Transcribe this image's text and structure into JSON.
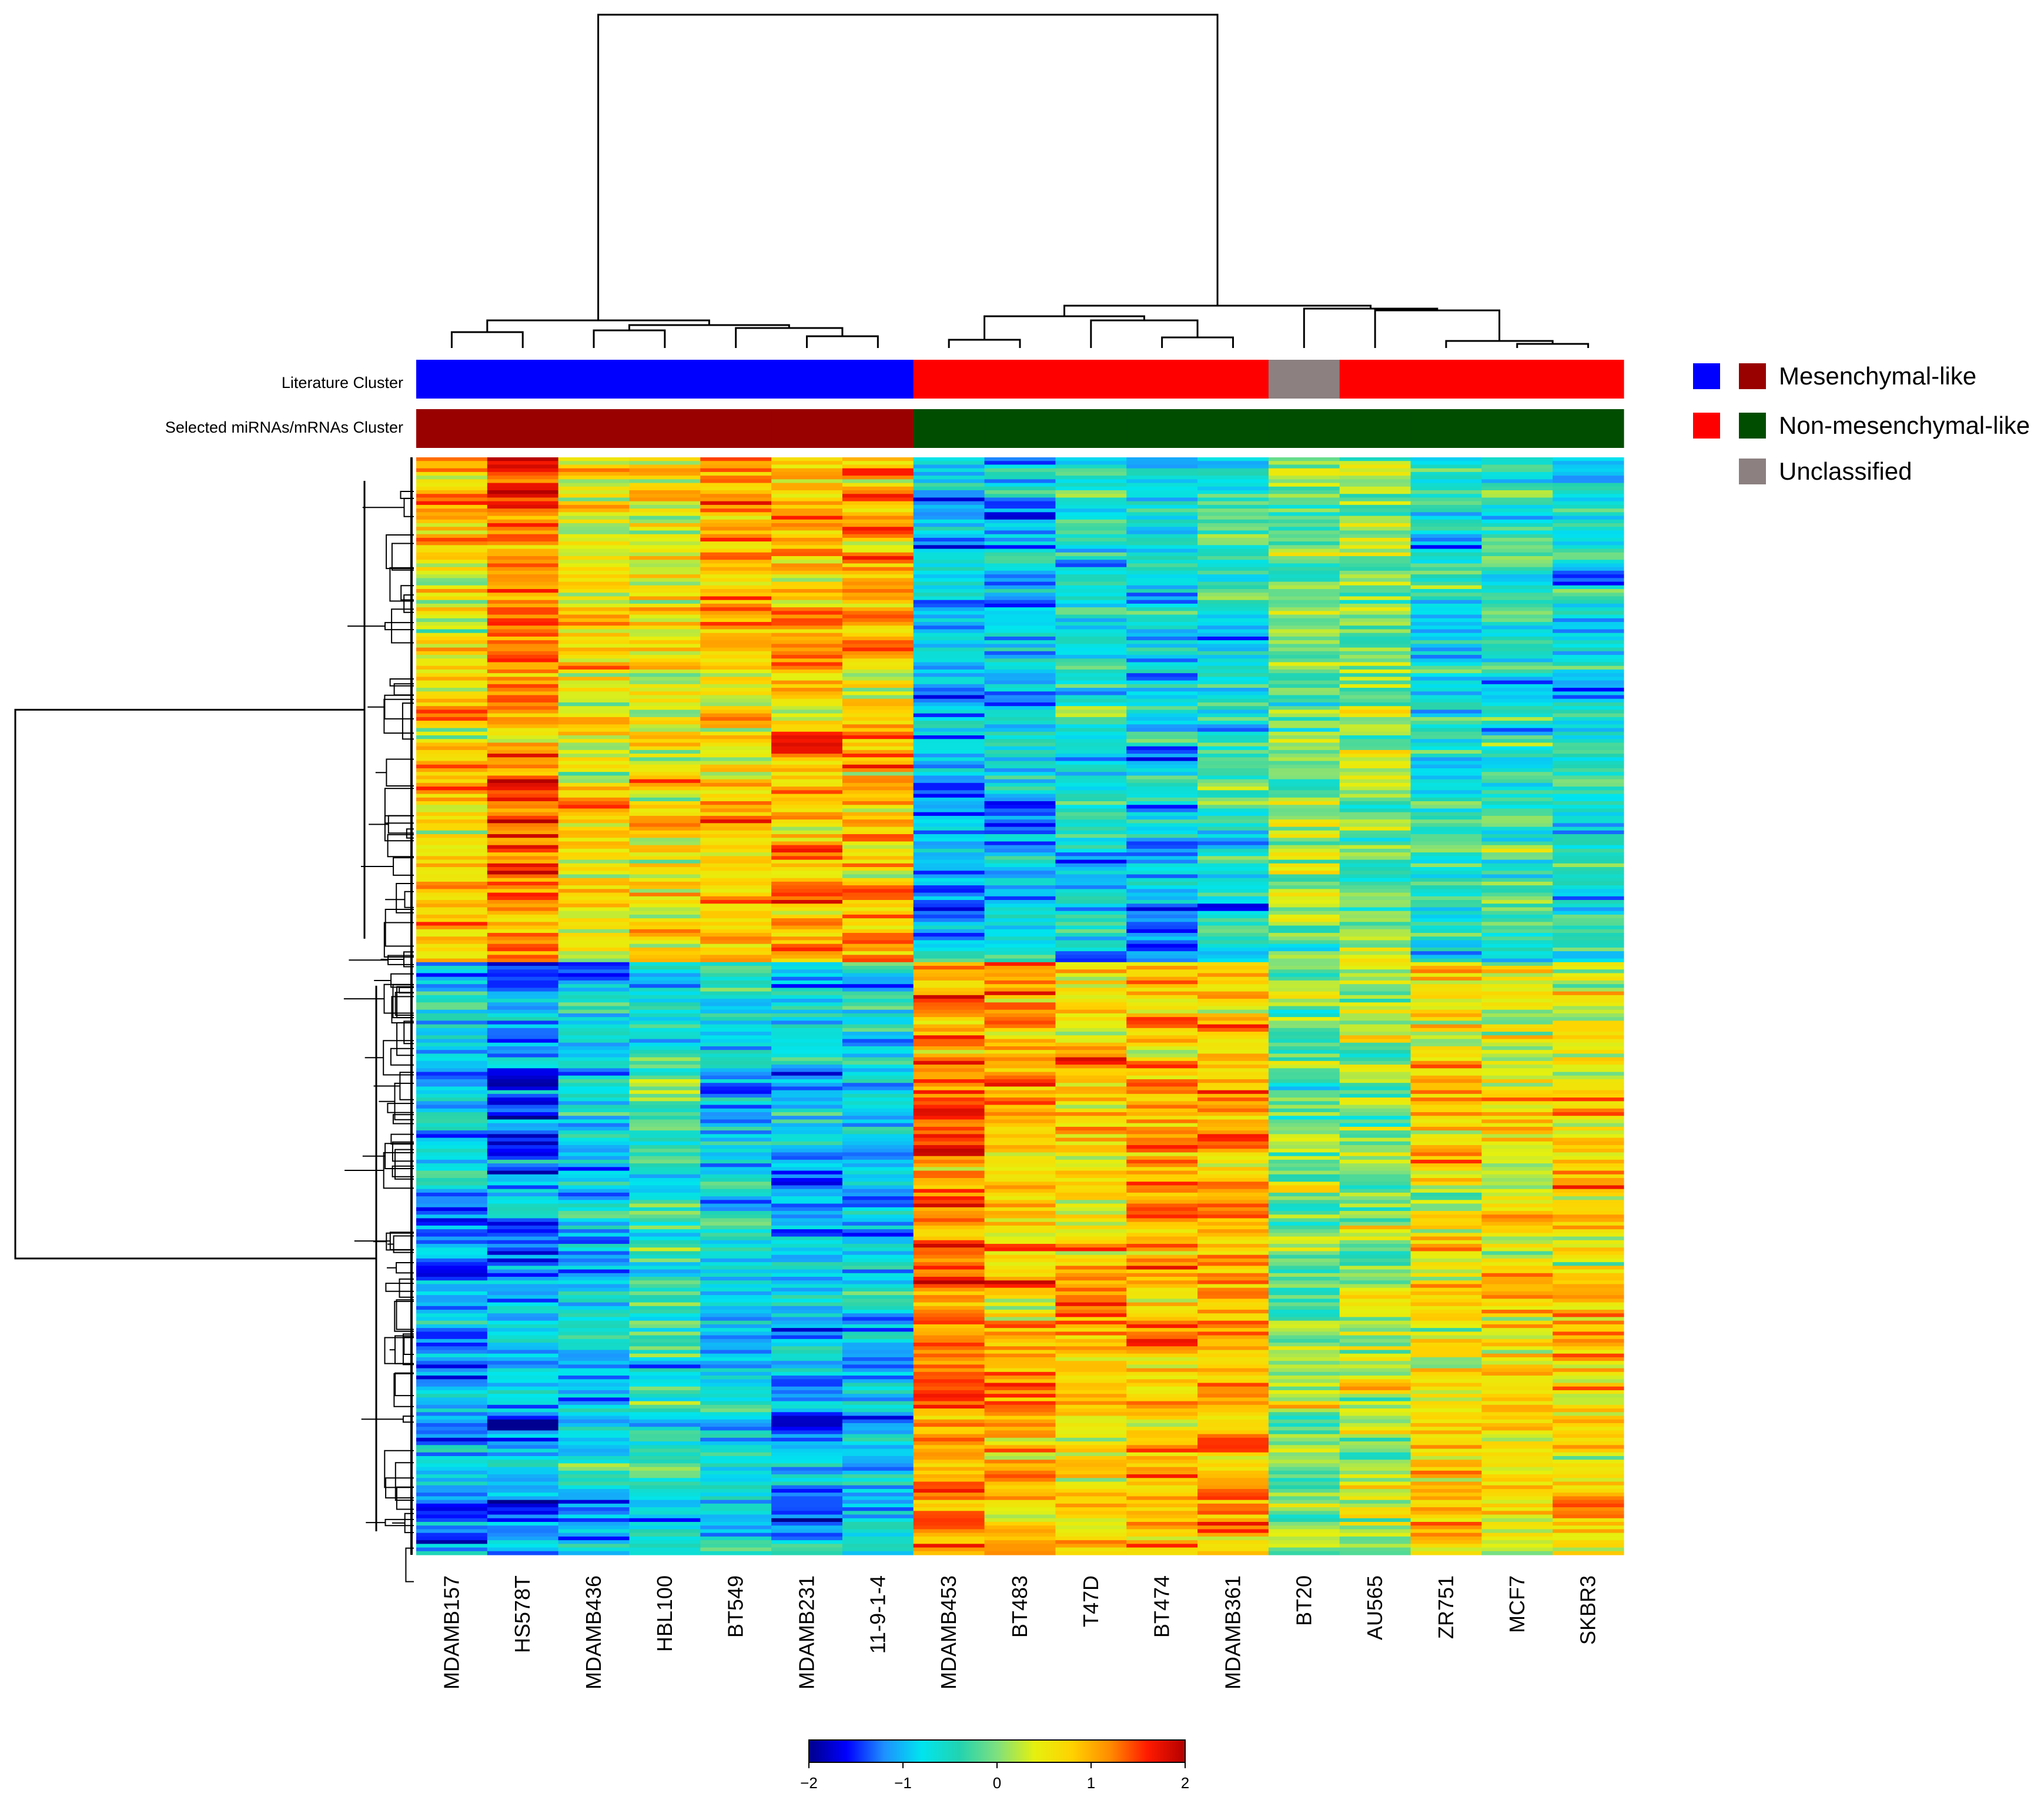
{
  "chart_data": {
    "type": "heatmap",
    "title": "",
    "samples": [
      "MDAMB157",
      "HS578T",
      "MDAMB436",
      "HBL100",
      "BT549",
      "MDAMB231",
      "11-9-1-4",
      "MDAMB453",
      "BT483",
      "T47D",
      "BT474",
      "MDAMB361",
      "BT20",
      "AU565",
      "ZR751",
      "MCF7",
      "SKBR3"
    ],
    "annotation_rows": [
      {
        "label": "Literature Cluster",
        "values": [
          "Mesenchymal-like",
          "Mesenchymal-like",
          "Mesenchymal-like",
          "Mesenchymal-like",
          "Mesenchymal-like",
          "Mesenchymal-like",
          "Mesenchymal-like",
          "Non-mesenchymal-like",
          "Non-mesenchymal-like",
          "Non-mesenchymal-like",
          "Non-mesenchymal-like",
          "Non-mesenchymal-like",
          "Unclassified",
          "Non-mesenchymal-like",
          "Non-mesenchymal-like",
          "Non-mesenchymal-like",
          "Non-mesenchymal-like"
        ]
      },
      {
        "label": "Selected miRNAs/mRNAs Cluster",
        "values": [
          "Mesenchymal-like",
          "Mesenchymal-like",
          "Mesenchymal-like",
          "Mesenchymal-like",
          "Mesenchymal-like",
          "Mesenchymal-like",
          "Mesenchymal-like",
          "Non-mesenchymal-like",
          "Non-mesenchymal-like",
          "Non-mesenchymal-like",
          "Non-mesenchymal-like",
          "Non-mesenchymal-like",
          "Non-mesenchymal-like",
          "Non-mesenchymal-like",
          "Non-mesenchymal-like",
          "Non-mesenchymal-like",
          "Non-mesenchymal-like"
        ]
      }
    ],
    "legend": [
      {
        "label": "Mesenchymal-like",
        "colors": [
          "#0000ff",
          "#990000"
        ]
      },
      {
        "label": "Non-mesenchymal-like",
        "colors": [
          "#ff0000",
          "#004d00"
        ]
      },
      {
        "label": "Unclassified",
        "colors": [
          "#8c8080"
        ]
      }
    ],
    "row_groups": {
      "upper_fraction": 0.46,
      "mean_z": [
        [
          0.7,
          -1.0
        ],
        [
          1.2,
          -1.2
        ],
        [
          0.6,
          -0.8
        ],
        [
          0.5,
          -0.6
        ],
        [
          0.8,
          -0.7
        ],
        [
          0.9,
          -0.9
        ],
        [
          0.9,
          -0.8
        ],
        [
          -1.0,
          1.2
        ],
        [
          -0.9,
          1.0
        ],
        [
          -0.7,
          0.8
        ],
        [
          -0.8,
          1.0
        ],
        [
          -0.6,
          0.9
        ],
        [
          -0.1,
          0.0
        ],
        [
          0.0,
          0.2
        ],
        [
          -0.6,
          0.7
        ],
        [
          -0.5,
          0.6
        ],
        [
          -0.6,
          0.7
        ]
      ],
      "spread": 0.75
    },
    "colorbar": {
      "min": -2,
      "max": 2,
      "ticks": [
        -2,
        -1,
        0,
        1,
        2
      ],
      "tick_labels": [
        "−2",
        "−1",
        "0",
        "1",
        "2"
      ],
      "colors": [
        "#00008b",
        "#0000ff",
        "#1e90ff",
        "#00e5ee",
        "#22d3b0",
        "#7ee07e",
        "#e5f00f",
        "#ffd200",
        "#ff8c00",
        "#ff1a00",
        "#b40000"
      ]
    },
    "dendrogram_top": {
      "main_split": [
        "MDAMB157..11-9-1-4",
        "MDAMB453..SKBR3"
      ]
    }
  }
}
